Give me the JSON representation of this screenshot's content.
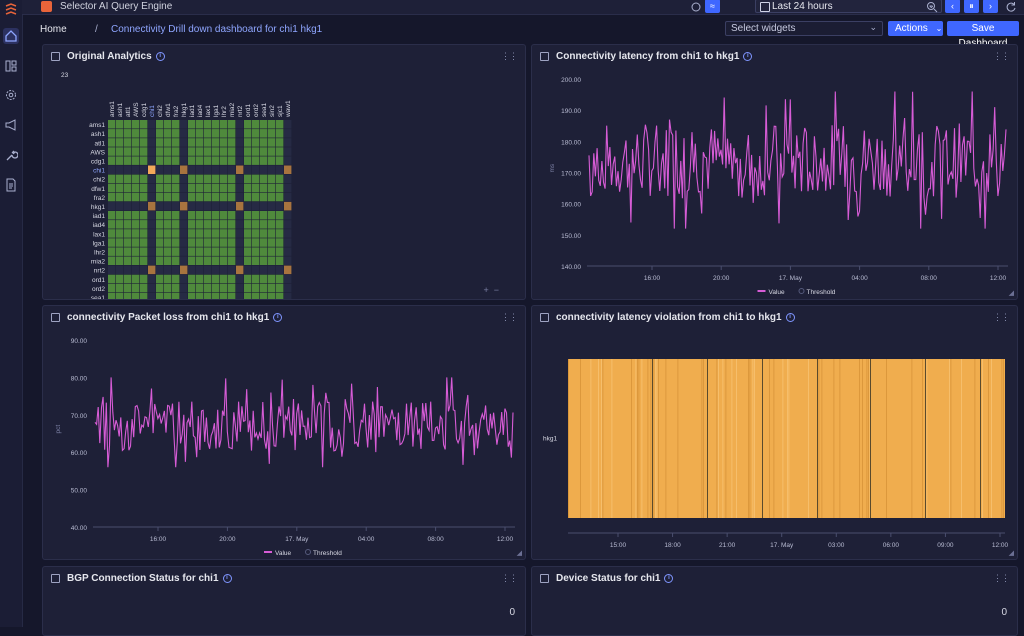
{
  "topbar": {
    "app_title": "Selector AI Query Engine",
    "time_range": "Last 24 hours"
  },
  "breadcrumb": {
    "home": "Home",
    "separator": "/",
    "current": "Connectivity Drill down dashboard for chi1 hkg1"
  },
  "toolbar": {
    "select_widgets_placeholder": "Select widgets",
    "actions_label": "Actions",
    "save_label": "Save Dashboard"
  },
  "panels": {
    "matrix": {
      "title": "Original Analytics",
      "count": "23",
      "rows": [
        "ams1",
        "ash1",
        "atl1",
        "AWS",
        "cdg1",
        "chi1",
        "chi2",
        "dfw1",
        "fra2",
        "hkg1",
        "iad1",
        "iad4",
        "lax1",
        "lga1",
        "lhr2",
        "mia2",
        "nrt2",
        "ord1",
        "ord2",
        "sea1",
        "sin2",
        "sjc1",
        "waw1"
      ],
      "cols": [
        "ams1",
        "ash1",
        "atl1",
        "AWS",
        "cdg1",
        "chi1",
        "chi2",
        "dfw1",
        "fra2",
        "hkg1",
        "iad1",
        "iad4",
        "lax1",
        "lga1",
        "lhr2",
        "mia2",
        "nrt2",
        "ord1",
        "ord2",
        "sea1",
        "sin2",
        "sjc1",
        "waw1"
      ],
      "highlight": "chi1",
      "colors": {
        "ok": "#4f8a3c",
        "gap": "#a8743f",
        "highlight": "#f3a85a"
      }
    },
    "latency": {
      "title": "Connectivity latency from chi1 to hkg1",
      "unit": "ms",
      "legend_value": "Value",
      "legend_threshold": "Threshold",
      "line_color": "#d75cd6"
    },
    "loss": {
      "title": "connectivity Packet loss from chi1 to hkg1",
      "unit": "pct",
      "legend_value": "Value",
      "legend_threshold": "Threshold",
      "line_color": "#d75cd6"
    },
    "violation": {
      "title": "connectivity latency violation from chi1 to hkg1",
      "row_label": "hkg1",
      "bar_color": "#f0ad4e"
    },
    "bgp": {
      "title": "BGP Connection Status for chi1",
      "value": "0"
    },
    "device": {
      "title": "Device Status for chi1",
      "value": "0"
    }
  },
  "chart_data": [
    {
      "type": "line",
      "title": "Connectivity latency from chi1 to hkg1",
      "ylabel": "ms",
      "ylim": [
        140,
        200
      ],
      "yticks": [
        "200.00",
        "190.00",
        "180.00",
        "170.00",
        "160.00",
        "150.00",
        "140.00"
      ],
      "xticks": [
        "16:00",
        "20:00",
        "17. May",
        "04:00",
        "08:00",
        "12:00"
      ],
      "series": [
        {
          "name": "Value",
          "range": [
            152,
            196
          ],
          "mean": 174
        }
      ],
      "legend": [
        "Value",
        "Threshold"
      ]
    },
    {
      "type": "line",
      "title": "connectivity Packet loss from chi1 to hkg1",
      "ylabel": "pct",
      "ylim": [
        40,
        90
      ],
      "yticks": [
        "90.00",
        "80.00",
        "70.00",
        "60.00",
        "50.00",
        "40.00"
      ],
      "xticks": [
        "16:00",
        "20:00",
        "17. May",
        "04:00",
        "08:00",
        "12:00"
      ],
      "series": [
        {
          "name": "Value",
          "range": [
            56,
            80
          ],
          "mean": 67
        }
      ],
      "legend": [
        "Value",
        "Threshold"
      ]
    },
    {
      "type": "heatmap",
      "title": "connectivity latency violation from chi1 to hkg1",
      "categories": [
        "hkg1"
      ],
      "xticks": [
        "15:00",
        "18:00",
        "21:00",
        "17. May",
        "03:00",
        "06:00",
        "09:00",
        "12:00"
      ]
    }
  ]
}
